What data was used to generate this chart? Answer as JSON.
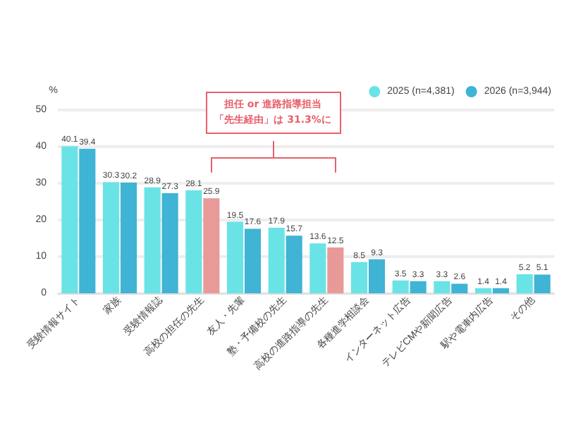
{
  "chart_data": {
    "type": "bar",
    "ylabel": "%",
    "categories": [
      "受験情報サイト",
      "家族",
      "受験情報誌",
      "高校の担任の先生",
      "友人・先輩",
      "塾・予備校の先生",
      "高校の進路指導の先生",
      "各種進学相談会",
      "インターネット広告",
      "テレビCMや新聞広告",
      "駅や電車内広告",
      "その他"
    ],
    "series": [
      {
        "name": "2025 (n=4,381)",
        "color": "#6ae3e6",
        "values": [
          40.1,
          30.3,
          28.9,
          28.1,
          19.5,
          17.9,
          13.6,
          8.5,
          3.5,
          3.3,
          1.4,
          5.2
        ]
      },
      {
        "name": "2026 (n=3,944)",
        "color": "#3fb4d4",
        "colors": [
          "#3fb4d4",
          "#3fb4d4",
          "#3fb4d4",
          "#e89a98",
          "#3fb4d4",
          "#3fb4d4",
          "#e89a98",
          "#3fb4d4",
          "#3fb4d4",
          "#3fb4d4",
          "#3fb4d4",
          "#3fb4d4"
        ],
        "values": [
          39.4,
          30.2,
          27.3,
          25.9,
          17.6,
          15.7,
          12.5,
          9.3,
          3.3,
          2.6,
          1.4,
          5.1
        ]
      }
    ],
    "ylim": [
      0,
      50
    ],
    "yticks": [
      0,
      10,
      20,
      30,
      40,
      50
    ],
    "grid": "y",
    "legend": "top right",
    "data_labels": true,
    "annotations": [
      "担任 or 進路指導担当",
      "「先生経由」は 31.3%に"
    ]
  }
}
